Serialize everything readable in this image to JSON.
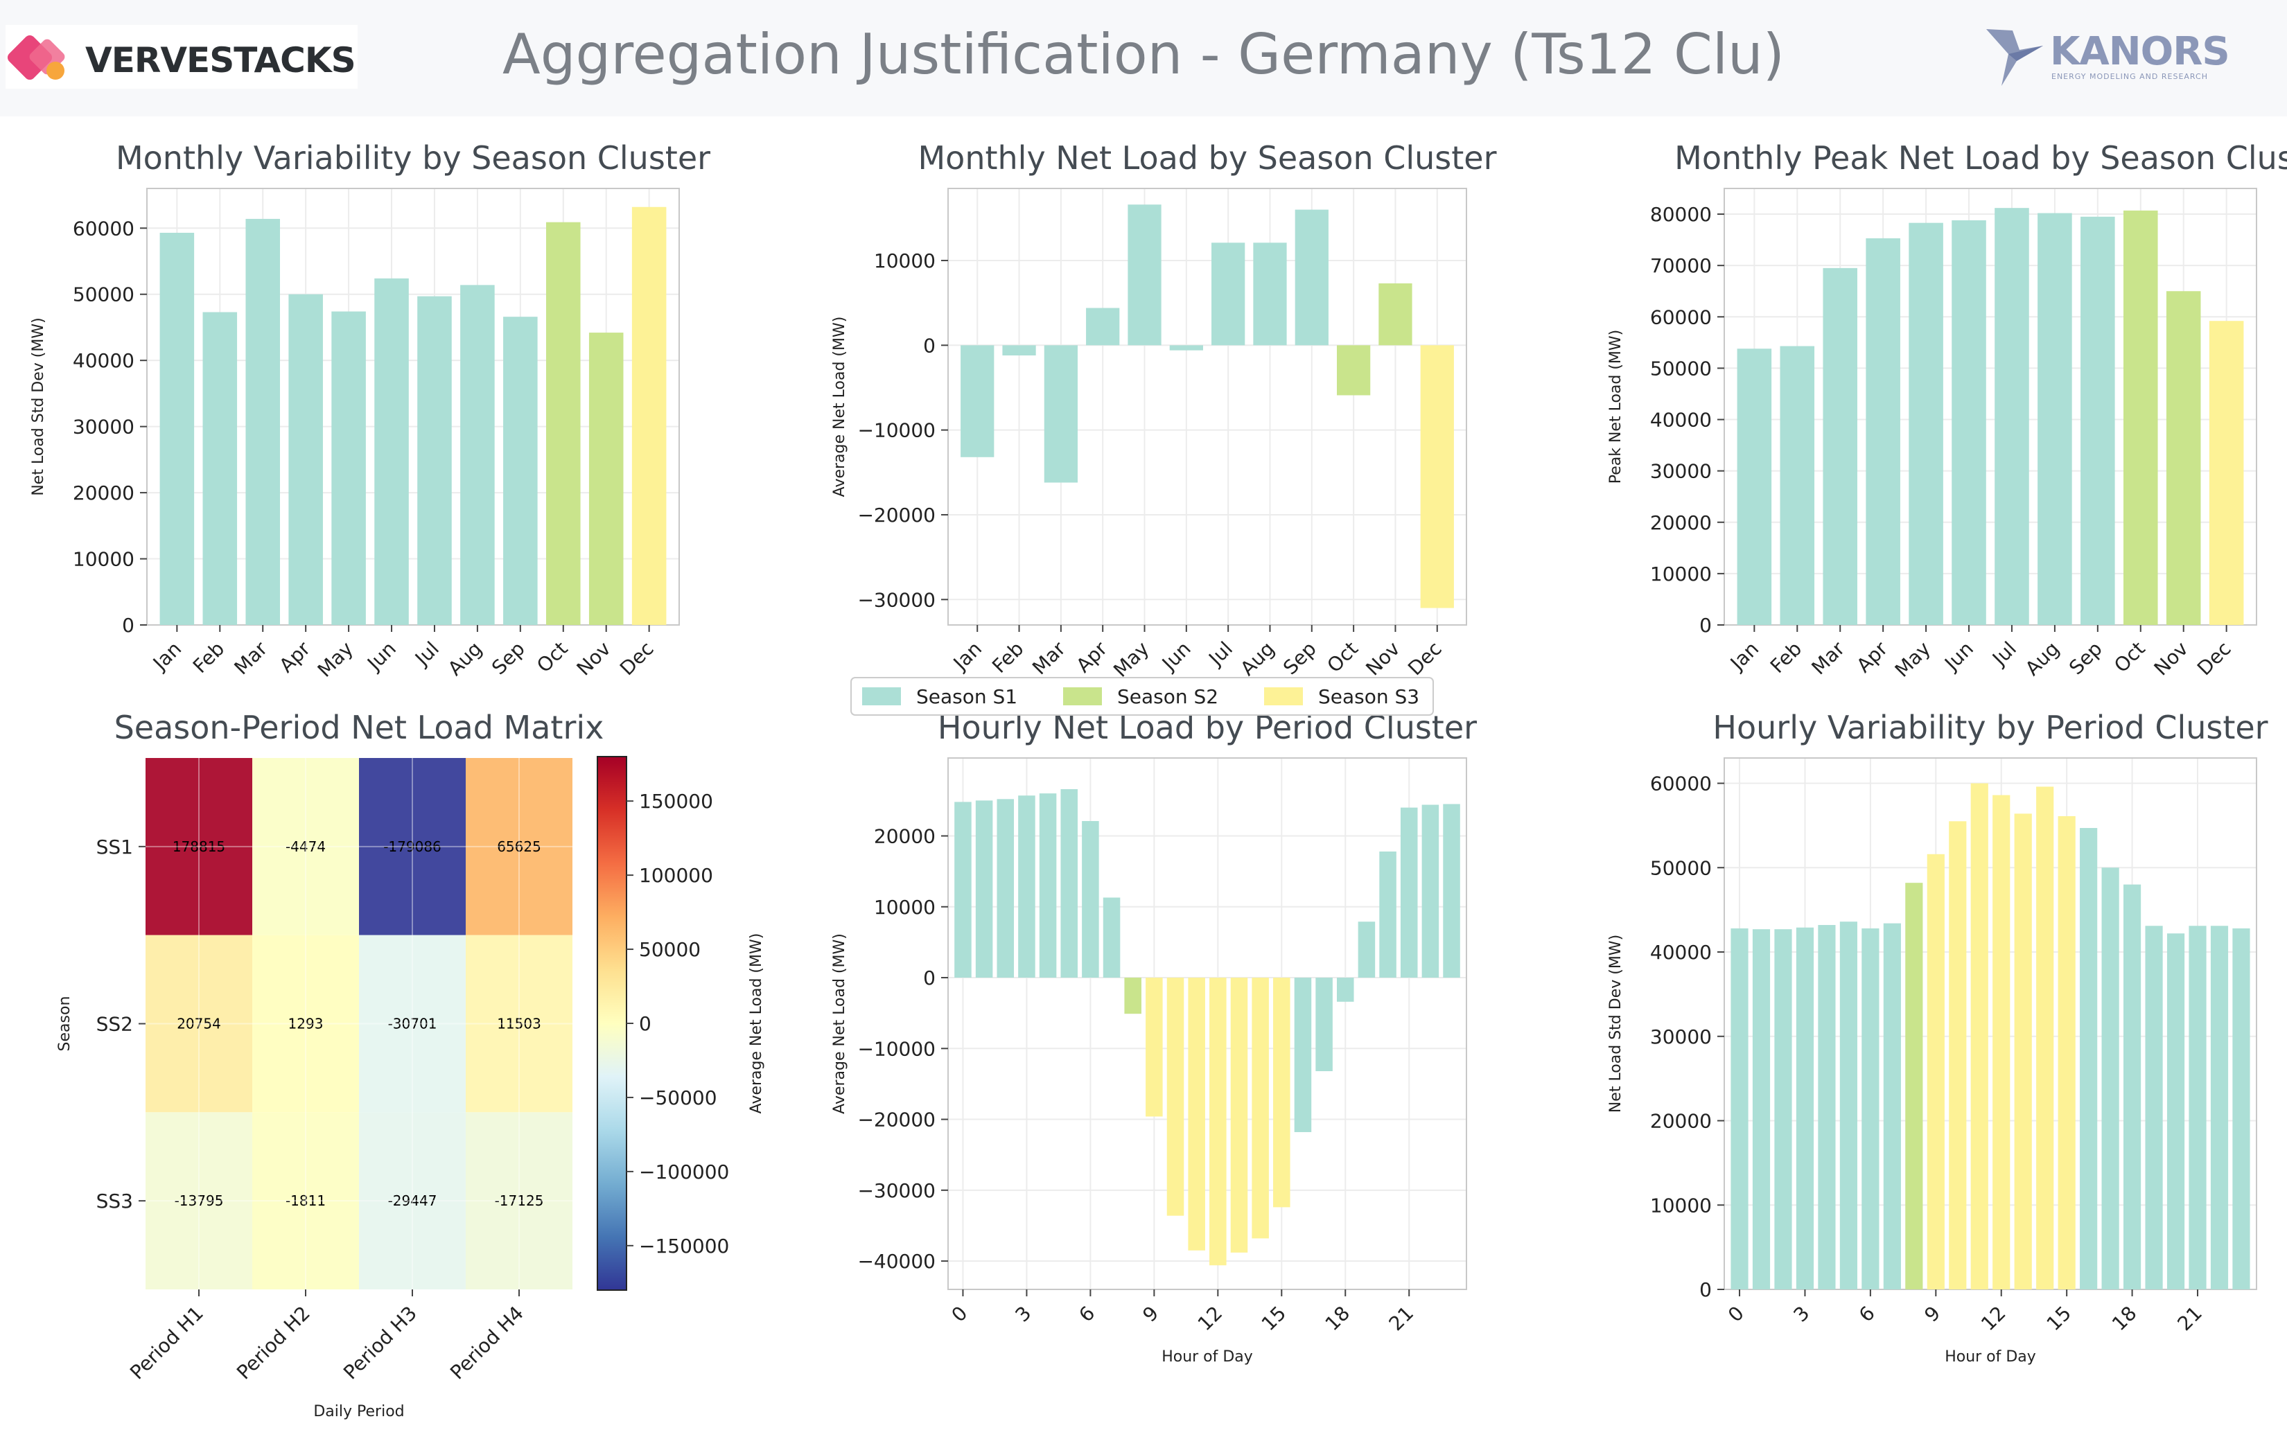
{
  "header": {
    "title": "Aggregation Justification - Germany (Ts12 Clu)",
    "brand_left": "VERVESTACKS",
    "brand_right": "KANORS",
    "brand_right_tagline": "ENERGY MODELING AND RESEARCH"
  },
  "colors": {
    "S1": "#acdfd6",
    "S2": "#c9e48c",
    "S3": "#fdf296",
    "grid": "#ececec",
    "axis": "#c8c8c8"
  },
  "legend": {
    "items": [
      {
        "key": "S1",
        "label": "Season S1"
      },
      {
        "key": "S2",
        "label": "Season S2"
      },
      {
        "key": "S3",
        "label": "Season S3"
      }
    ]
  },
  "chart_data": [
    {
      "id": "monthly_variability",
      "type": "bar",
      "title": "Monthly Variability by Season Cluster",
      "xlabel": "",
      "ylabel": "Net Load Std Dev (MW)",
      "categories": [
        "Jan",
        "Feb",
        "Mar",
        "Apr",
        "May",
        "Jun",
        "Jul",
        "Aug",
        "Sep",
        "Oct",
        "Nov",
        "Dec"
      ],
      "values": [
        59300,
        47300,
        61400,
        50000,
        47400,
        52400,
        49700,
        51400,
        46600,
        60900,
        44200,
        63200
      ],
      "season": [
        "S1",
        "S1",
        "S1",
        "S1",
        "S1",
        "S1",
        "S1",
        "S1",
        "S1",
        "S2",
        "S2",
        "S3"
      ],
      "ylim": [
        0,
        66000
      ],
      "yticks": [
        0,
        10000,
        20000,
        30000,
        40000,
        50000,
        60000
      ]
    },
    {
      "id": "monthly_net_load",
      "type": "bar",
      "title": "Monthly Net Load by Season Cluster",
      "xlabel": "",
      "ylabel": "Average Net Load (MW)",
      "categories": [
        "Jan",
        "Feb",
        "Mar",
        "Apr",
        "May",
        "Jun",
        "Jul",
        "Aug",
        "Sep",
        "Oct",
        "Nov",
        "Dec"
      ],
      "values": [
        -13200,
        -1200,
        -16200,
        4400,
        16600,
        -600,
        12100,
        12100,
        16000,
        -5900,
        7300,
        -31000
      ],
      "season": [
        "S1",
        "S1",
        "S1",
        "S1",
        "S1",
        "S1",
        "S1",
        "S1",
        "S1",
        "S2",
        "S2",
        "S3"
      ],
      "ylim": [
        -33000,
        18500
      ],
      "yticks": [
        -30000,
        -20000,
        -10000,
        0,
        10000
      ]
    },
    {
      "id": "monthly_peak",
      "type": "bar",
      "title": "Monthly Peak Net Load by Season Clust",
      "xlabel": "",
      "ylabel": "Peak Net Load (MW)",
      "categories": [
        "Jan",
        "Feb",
        "Mar",
        "Apr",
        "May",
        "Jun",
        "Jul",
        "Aug",
        "Sep",
        "Oct",
        "Nov",
        "Dec"
      ],
      "values": [
        53800,
        54300,
        69500,
        75300,
        78300,
        78800,
        81200,
        80200,
        79500,
        80700,
        65000,
        59200
      ],
      "season": [
        "S1",
        "S1",
        "S1",
        "S1",
        "S1",
        "S1",
        "S1",
        "S1",
        "S1",
        "S2",
        "S2",
        "S3"
      ],
      "ylim": [
        0,
        85000
      ],
      "yticks": [
        0,
        10000,
        20000,
        30000,
        40000,
        50000,
        60000,
        70000,
        80000
      ]
    },
    {
      "id": "season_period_matrix",
      "type": "heatmap",
      "title": "Season-Period Net Load Matrix",
      "xlabel": "Daily Period",
      "ylabel": "Season",
      "x": [
        "Period H1",
        "Period H2",
        "Period H3",
        "Period H4"
      ],
      "y": [
        "SS1",
        "SS2",
        "SS3"
      ],
      "values": [
        [
          178815,
          -4474,
          -179086,
          65625
        ],
        [
          20754,
          1293,
          -30701,
          11503
        ],
        [
          -13795,
          -1811,
          -29447,
          -17125
        ]
      ],
      "colorbar": {
        "label": "Average Net Load (MW)",
        "range": [
          -180000,
          180000
        ],
        "ticks": [
          -150000,
          -100000,
          -50000,
          0,
          50000,
          100000,
          150000
        ]
      }
    },
    {
      "id": "hourly_net_load",
      "type": "bar",
      "title": "Hourly Net Load by Period Cluster",
      "xlabel": "Hour of Day",
      "ylabel": "Average Net Load (MW)",
      "x": [
        0,
        1,
        2,
        3,
        4,
        5,
        6,
        7,
        8,
        9,
        10,
        11,
        12,
        13,
        14,
        15,
        16,
        17,
        18,
        19,
        20,
        21,
        22,
        23
      ],
      "values": [
        24800,
        25000,
        25200,
        25700,
        26000,
        26600,
        22100,
        11300,
        -5100,
        -19600,
        -33600,
        -38500,
        -40600,
        -38800,
        -36800,
        -32400,
        -21800,
        -13200,
        -3400,
        7900,
        17800,
        24000,
        24400,
        24500
      ],
      "season": [
        "S1",
        "S1",
        "S1",
        "S1",
        "S1",
        "S1",
        "S1",
        "S1",
        "S2",
        "S3",
        "S3",
        "S3",
        "S3",
        "S3",
        "S3",
        "S3",
        "S1",
        "S1",
        "S1",
        "S1",
        "S1",
        "S1",
        "S1",
        "S1"
      ],
      "ylim": [
        -44000,
        31000
      ],
      "yticks": [
        -40000,
        -30000,
        -20000,
        -10000,
        0,
        10000,
        20000
      ],
      "xticks": [
        0,
        3,
        6,
        9,
        12,
        15,
        18,
        21
      ]
    },
    {
      "id": "hourly_variability",
      "type": "bar",
      "title": "Hourly Variability by Period Cluster",
      "xlabel": "Hour of Day",
      "ylabel": "Net Load Std Dev (MW)",
      "x": [
        0,
        1,
        2,
        3,
        4,
        5,
        6,
        7,
        8,
        9,
        10,
        11,
        12,
        13,
        14,
        15,
        16,
        17,
        18,
        19,
        20,
        21,
        22,
        23
      ],
      "values": [
        42800,
        42700,
        42700,
        42900,
        43200,
        43600,
        42800,
        43400,
        48200,
        51600,
        55500,
        60000,
        58600,
        56400,
        59600,
        56100,
        54700,
        50000,
        48000,
        43100,
        42200,
        43100,
        43100,
        42800
      ],
      "season": [
        "S1",
        "S1",
        "S1",
        "S1",
        "S1",
        "S1",
        "S1",
        "S1",
        "S2",
        "S3",
        "S3",
        "S3",
        "S3",
        "S3",
        "S3",
        "S3",
        "S1",
        "S1",
        "S1",
        "S1",
        "S1",
        "S1",
        "S1",
        "S1"
      ],
      "ylim": [
        0,
        63000
      ],
      "yticks": [
        0,
        10000,
        20000,
        30000,
        40000,
        50000,
        60000
      ],
      "xticks": [
        0,
        3,
        6,
        9,
        12,
        15,
        18,
        21
      ]
    }
  ]
}
